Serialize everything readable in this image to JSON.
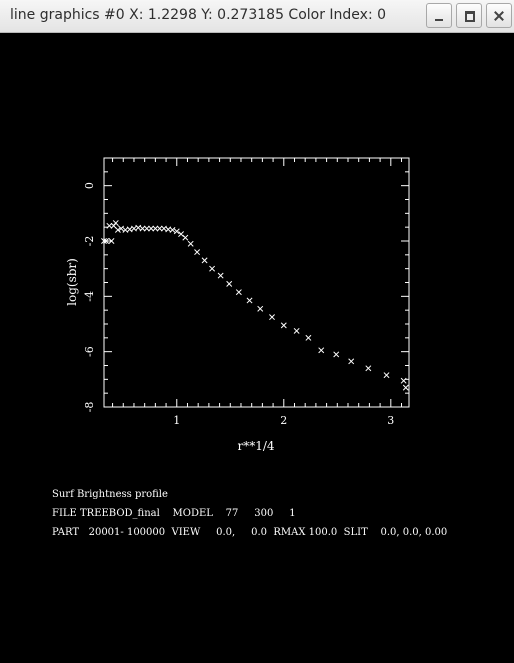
{
  "window": {
    "title": "line graphics #0 X: 1.2298 Y: 0.273185 Color Index: 0",
    "icons": [
      "minimize-icon",
      "maximize-icon",
      "close-icon"
    ]
  },
  "colors": {
    "background": "#000000",
    "foreground": "#ffffff",
    "titlebar": "#ececec"
  },
  "chart_data": {
    "type": "scatter",
    "xlabel": "r**1/4",
    "ylabel": "log(sbr)",
    "xlim": [
      0.32,
      3.17
    ],
    "ylim": [
      -8,
      1
    ],
    "xticks": [
      1,
      2,
      3
    ],
    "yticks": [
      0,
      -2,
      -4,
      -6,
      -8
    ],
    "grid": false,
    "marker": "x",
    "points": [
      [
        0.32,
        -2.0
      ],
      [
        0.34,
        -2.0
      ],
      [
        0.37,
        -1.45
      ],
      [
        0.39,
        -2.0
      ],
      [
        0.41,
        -1.45
      ],
      [
        0.43,
        -1.35
      ],
      [
        0.45,
        -1.6
      ],
      [
        0.48,
        -1.55
      ],
      [
        0.52,
        -1.6
      ],
      [
        0.56,
        -1.58
      ],
      [
        0.6,
        -1.55
      ],
      [
        0.64,
        -1.52
      ],
      [
        0.68,
        -1.55
      ],
      [
        0.72,
        -1.55
      ],
      [
        0.76,
        -1.55
      ],
      [
        0.8,
        -1.55
      ],
      [
        0.84,
        -1.55
      ],
      [
        0.88,
        -1.55
      ],
      [
        0.92,
        -1.58
      ],
      [
        0.96,
        -1.6
      ],
      [
        1.0,
        -1.65
      ],
      [
        1.04,
        -1.75
      ],
      [
        1.08,
        -1.88
      ],
      [
        1.13,
        -2.1
      ],
      [
        1.19,
        -2.4
      ],
      [
        1.26,
        -2.7
      ],
      [
        1.33,
        -3.0
      ],
      [
        1.41,
        -3.25
      ],
      [
        1.49,
        -3.55
      ],
      [
        1.58,
        -3.85
      ],
      [
        1.68,
        -4.15
      ],
      [
        1.78,
        -4.45
      ],
      [
        1.89,
        -4.75
      ],
      [
        2.0,
        -5.05
      ],
      [
        2.12,
        -5.25
      ],
      [
        2.23,
        -5.5
      ],
      [
        2.35,
        -5.95
      ],
      [
        2.49,
        -6.1
      ],
      [
        2.63,
        -6.35
      ],
      [
        2.79,
        -6.6
      ],
      [
        2.96,
        -6.85
      ],
      [
        3.12,
        -7.05
      ],
      [
        3.14,
        -7.3
      ]
    ]
  },
  "info": {
    "line1": "Surf Brightness profile",
    "line2": "FILE TREEBOD_final    MODEL    77     300     1",
    "line3": "PART   20001- 100000  VIEW     0.0,     0.0  RMAX 100.0  SLIT    0.0, 0.0, 0.00"
  }
}
